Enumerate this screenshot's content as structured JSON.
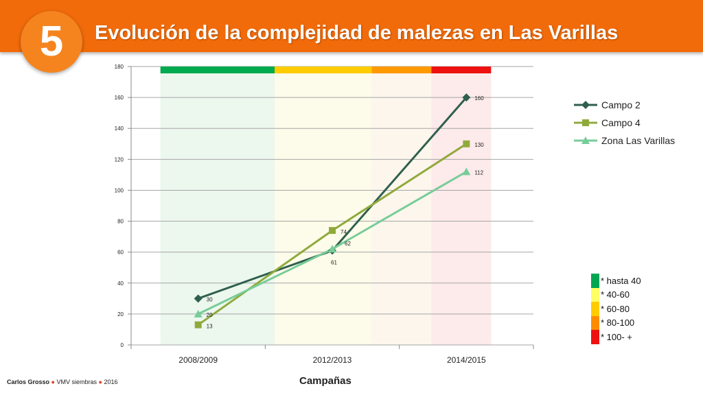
{
  "header": {
    "number": "5",
    "title": "Evolución de la complejidad de malezas en Las Varillas"
  },
  "chart_data": {
    "type": "line",
    "categories": [
      "2008/2009",
      "2012/2013",
      "2014/2015"
    ],
    "ylim": [
      0,
      180
    ],
    "yticks": [
      0,
      20,
      40,
      60,
      80,
      100,
      120,
      140,
      160,
      180
    ],
    "grid": true,
    "legend_position": "right",
    "xlabel": "Campañas",
    "ylabel": "",
    "series": [
      {
        "name": "Campo 2",
        "values": [
          30,
          61,
          160
        ],
        "color": "#2f5f4e",
        "marker": "diamond",
        "labels": [
          "30",
          "61",
          "160"
        ]
      },
      {
        "name": "Campo 4",
        "values": [
          13,
          74,
          130
        ],
        "color": "#8faa3c",
        "marker": "square",
        "labels": [
          "13",
          "74",
          "130"
        ]
      },
      {
        "name": "Zona Las Varillas",
        "values": [
          20,
          62,
          112
        ],
        "color": "#77cc99",
        "marker": "triangle",
        "labels": [
          "20",
          "62",
          "112"
        ]
      }
    ],
    "top_band_colors": [
      "#00aa4f",
      "#ffcc00",
      "#ff9900",
      "#ee1111"
    ],
    "bg_band_colors": [
      "#ecf7ee",
      "#fdfbe9",
      "#fcf6ec",
      "#fdeaea"
    ],
    "complexity_scale": [
      {
        "label": "* hasta 40",
        "color": "#00a651"
      },
      {
        "label": "* 40-60",
        "color": "#ffff66"
      },
      {
        "label": "* 60-80",
        "color": "#ffcc00"
      },
      {
        "label": "* 80-100",
        "color": "#ff8c00"
      },
      {
        "label": "* 100- +",
        "color": "#ee1111"
      }
    ]
  },
  "footer": {
    "author": "Carlos Grosso",
    "org": "VMV siembras",
    "year": "2016",
    "separator": "●"
  }
}
